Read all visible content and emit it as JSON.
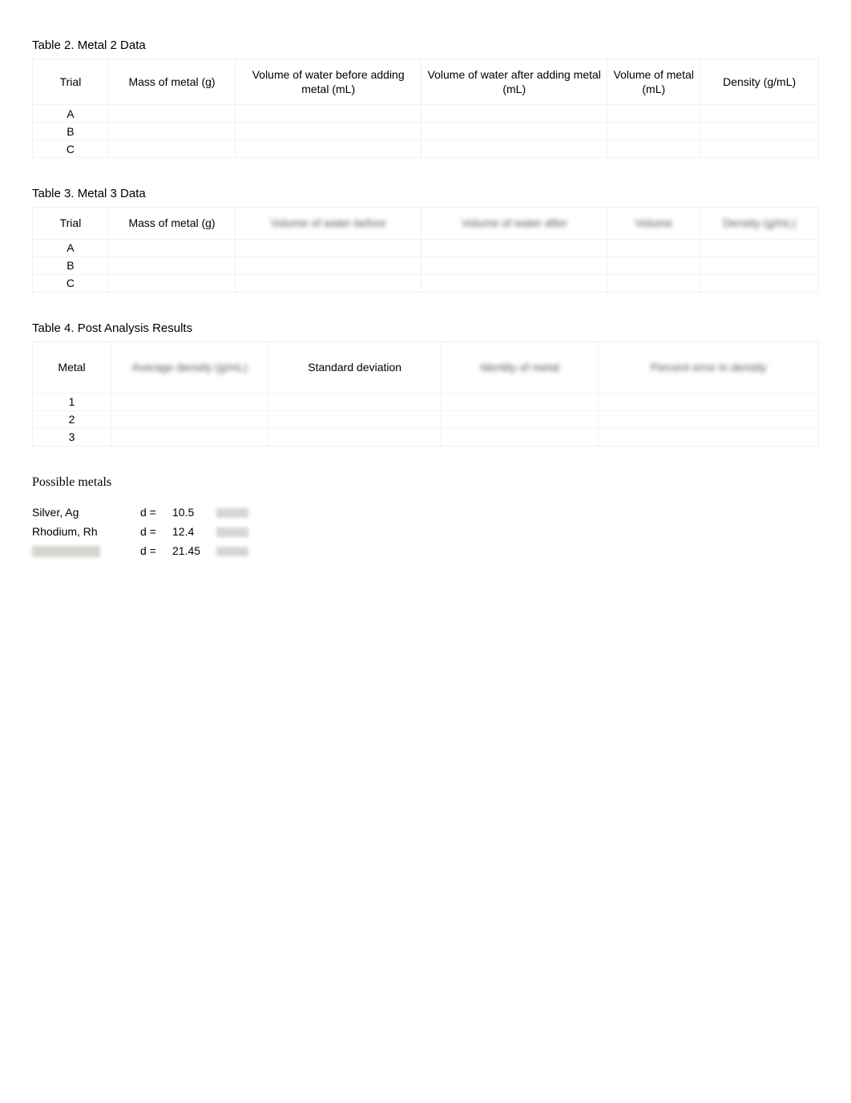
{
  "table2": {
    "title": "Table 2. Metal 2 Data",
    "columns": [
      "Trial",
      "Mass of metal (g)",
      "Volume of water before adding metal (mL)",
      "Volume of water after adding metal (mL)",
      "Volume of metal (mL)",
      "Density (g/mL)"
    ],
    "column_blurred": [
      false,
      false,
      false,
      false,
      false,
      false
    ],
    "rows": [
      [
        "A",
        "",
        "",
        "",
        "",
        ""
      ],
      [
        "B",
        "",
        "",
        "",
        "",
        ""
      ],
      [
        "C",
        "",
        "",
        "",
        "",
        ""
      ]
    ]
  },
  "table3": {
    "title": "Table 3. Metal 3 Data",
    "columns": [
      "Trial",
      "Mass of metal (g)",
      "Volume of water before",
      "Volume of water after",
      "Volume",
      "Density (g/mL)"
    ],
    "column_blurred": [
      false,
      false,
      true,
      true,
      true,
      true
    ],
    "rows": [
      [
        "A",
        "",
        "",
        "",
        "",
        ""
      ],
      [
        "B",
        "",
        "",
        "",
        "",
        ""
      ],
      [
        "C",
        "",
        "",
        "",
        "",
        ""
      ]
    ]
  },
  "table4": {
    "title": "Table 4. Post Analysis Results",
    "columns": [
      "Metal",
      "Average density (g/mL)",
      "Standard deviation",
      "Identity of metal",
      "Percent error in density"
    ],
    "column_blurred": [
      false,
      true,
      false,
      true,
      true
    ],
    "rows": [
      [
        "1",
        "",
        "",
        "",
        ""
      ],
      [
        "2",
        "",
        "",
        "",
        ""
      ],
      [
        "3",
        "",
        "",
        "",
        ""
      ]
    ]
  },
  "possible": {
    "title": "Possible metals",
    "d_label": "d =",
    "rows": [
      {
        "name": "Silver, Ag",
        "name_blurred": false,
        "value": "10.5",
        "unit_blurred": true
      },
      {
        "name": "Rhodium, Rh",
        "name_blurred": false,
        "value": "12.4",
        "unit_blurred": true
      },
      {
        "name": "Rhenium, Re",
        "name_blurred": true,
        "value": "21.45",
        "unit_blurred": true
      }
    ]
  },
  "colors": {
    "text": "#000000",
    "background": "#ffffff",
    "border": "rgba(0,0,0,0.05)",
    "blur_bg": "#d7d5d2"
  }
}
